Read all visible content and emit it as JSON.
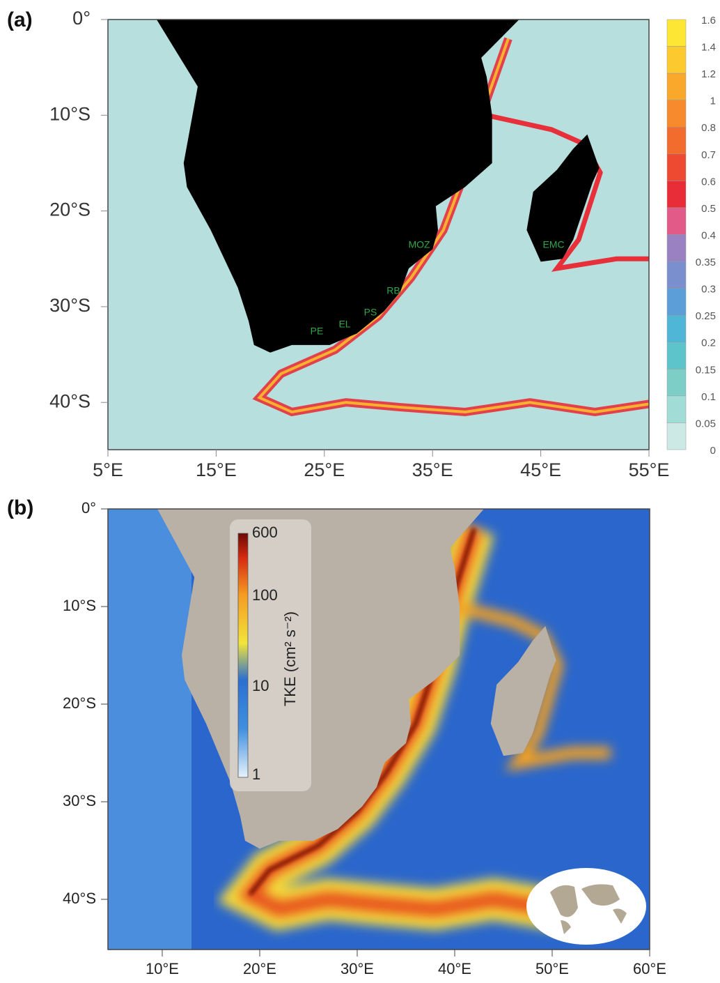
{
  "panel_a": {
    "label": "(a)",
    "y_ticks": [
      "0°",
      "10°S",
      "20°S",
      "30°S",
      "40°S"
    ],
    "x_ticks": [
      "5°E",
      "15°E",
      "25°E",
      "35°E",
      "45°E",
      "55°E"
    ],
    "colorbar_ticks": [
      "1.6",
      "1.4",
      "1.2",
      "1",
      "0.8",
      "0.7",
      "0.6",
      "0.5",
      "0.4",
      "0.35",
      "0.3",
      "0.25",
      "0.2",
      "0.15",
      "0.1",
      "0.05",
      "0"
    ],
    "place_labels": [
      "MOZ",
      "EMC",
      "RB",
      "PS",
      "EL",
      "PE"
    ]
  },
  "panel_b": {
    "label": "(b)",
    "y_ticks": [
      "0°",
      "10°S",
      "20°S",
      "30°S",
      "40°S"
    ],
    "x_ticks": [
      "10°E",
      "20°E",
      "30°E",
      "40°E",
      "50°E",
      "60°E"
    ],
    "colorbar_ticks": [
      "600",
      "100",
      "10",
      "1"
    ],
    "colorbar_title": "TKE (cm² s⁻²)"
  }
}
